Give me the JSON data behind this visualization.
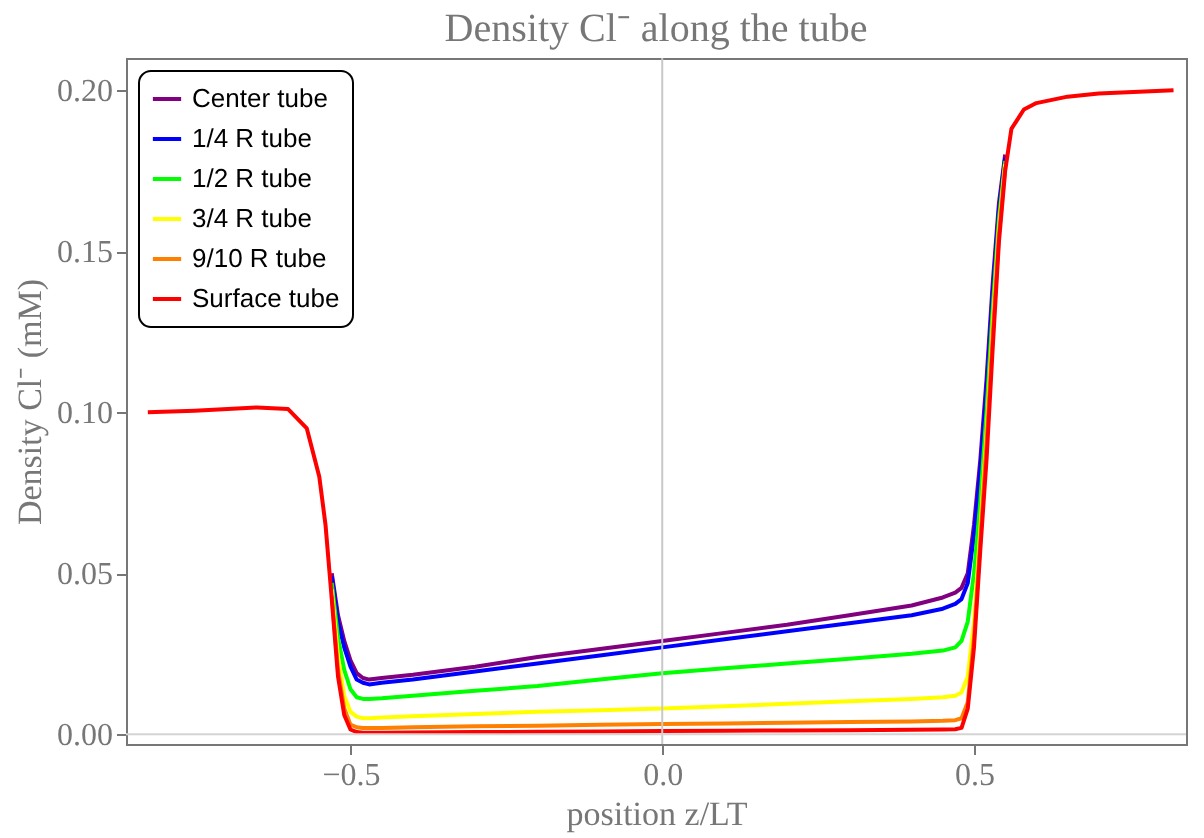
{
  "chart_data": {
    "type": "line",
    "title": "Density Cl⁻ along the tube",
    "xlabel": "position z/LT",
    "ylabel": "Density Cl⁻ (mM)",
    "x": [
      -0.825,
      -0.75,
      -0.65,
      -0.6,
      -0.57,
      -0.55,
      -0.54,
      -0.53,
      -0.52,
      -0.51,
      -0.5,
      -0.49,
      -0.48,
      -0.47,
      -0.45,
      -0.4,
      -0.3,
      -0.2,
      -0.1,
      0,
      0.1,
      0.2,
      0.3,
      0.4,
      0.45,
      0.47,
      0.48,
      0.49,
      0.5,
      0.51,
      0.52,
      0.53,
      0.54,
      0.55,
      0.56,
      0.58,
      0.6,
      0.65,
      0.7,
      0.82
    ],
    "series": [
      {
        "name": "Center tube",
        "color": "#800080",
        "values": [
          null,
          null,
          null,
          null,
          null,
          null,
          null,
          0.05,
          0.037,
          0.029,
          0.023,
          0.019,
          0.0175,
          0.017,
          0.0175,
          0.0185,
          0.021,
          0.024,
          0.0265,
          0.029,
          0.0315,
          0.034,
          0.037,
          0.04,
          0.0425,
          0.044,
          0.0455,
          0.05,
          0.065,
          0.085,
          0.11,
          0.14,
          0.165,
          0.18,
          null,
          null,
          null,
          null,
          null,
          null
        ]
      },
      {
        "name": "1/4 R tube",
        "color": "#0000ff",
        "values": [
          null,
          null,
          null,
          null,
          null,
          null,
          null,
          0.049,
          0.035,
          0.027,
          0.021,
          0.017,
          0.016,
          0.0155,
          0.016,
          0.017,
          0.0195,
          0.022,
          0.0245,
          0.027,
          0.0295,
          0.032,
          0.0345,
          0.037,
          0.039,
          0.0405,
          0.042,
          0.047,
          0.062,
          0.082,
          0.107,
          0.137,
          0.163,
          0.179,
          null,
          null,
          null,
          null,
          null,
          null
        ]
      },
      {
        "name": "1/2 R tube",
        "color": "#00ff00",
        "values": [
          null,
          null,
          null,
          null,
          null,
          null,
          null,
          0.047,
          0.03,
          0.02,
          0.014,
          0.0115,
          0.011,
          0.011,
          0.0112,
          0.012,
          0.0135,
          0.015,
          0.017,
          0.019,
          0.0205,
          0.022,
          0.0235,
          0.025,
          0.026,
          0.027,
          0.029,
          0.035,
          0.05,
          0.072,
          0.1,
          0.132,
          0.16,
          0.178,
          null,
          null,
          null,
          null,
          null,
          null
        ]
      },
      {
        "name": "3/4 R tube",
        "color": "#ffff00",
        "values": [
          null,
          null,
          null,
          null,
          null,
          null,
          null,
          0.045,
          0.024,
          0.012,
          0.007,
          0.0055,
          0.005,
          0.005,
          0.0052,
          0.0056,
          0.0063,
          0.007,
          0.0075,
          0.008,
          0.0087,
          0.0095,
          0.0103,
          0.011,
          0.0115,
          0.012,
          0.013,
          0.018,
          0.035,
          0.063,
          0.093,
          0.127,
          0.157,
          0.177,
          null,
          null,
          null,
          null,
          null,
          null
        ]
      },
      {
        "name": "9/10 R tube",
        "color": "#ff8000",
        "values": [
          null,
          null,
          null,
          null,
          null,
          null,
          null,
          0.043,
          0.02,
          0.008,
          0.003,
          0.0022,
          0.002,
          0.002,
          0.002,
          0.0022,
          0.0025,
          0.0027,
          0.003,
          0.0032,
          0.0034,
          0.0036,
          0.0038,
          0.004,
          0.0042,
          0.0044,
          0.005,
          0.01,
          0.03,
          0.06,
          0.09,
          0.124,
          0.155,
          0.176,
          null,
          null,
          null,
          null,
          null,
          null
        ]
      },
      {
        "name": "Surface tube",
        "color": "#ff0000",
        "values": [
          0.1,
          0.1005,
          0.1015,
          0.101,
          0.095,
          0.08,
          0.065,
          0.042,
          0.018,
          0.006,
          0.0015,
          0.0007,
          0.0005,
          0.0005,
          0.0005,
          0.0006,
          0.0007,
          0.0008,
          0.0009,
          0.001,
          0.0011,
          0.0012,
          0.0013,
          0.0014,
          0.0015,
          0.0016,
          0.002,
          0.008,
          0.027,
          0.057,
          0.085,
          0.12,
          0.153,
          0.175,
          0.188,
          0.194,
          0.196,
          0.198,
          0.199,
          0.2
        ]
      }
    ],
    "xlim": [
      -0.86,
      0.84
    ],
    "ylim": [
      -0.003,
      0.21
    ],
    "xticks": [
      -0.5,
      {
        "value": 0,
        "label": "0.0"
      },
      0.5
    ],
    "yticks": [
      {
        "value": 0,
        "label": "0.00"
      },
      0.05,
      {
        "value": 0.1,
        "label": "0.10"
      },
      0.15,
      {
        "value": 0.2,
        "label": "0.20"
      }
    ],
    "ref_lines": [
      {
        "axis": "x",
        "value": 0,
        "color": "#c8c8c8"
      },
      {
        "axis": "y",
        "value": 0,
        "color": "#d4d4d4"
      }
    ],
    "legend": "top left",
    "grid": false,
    "marker": "none",
    "line_style": "solid"
  }
}
